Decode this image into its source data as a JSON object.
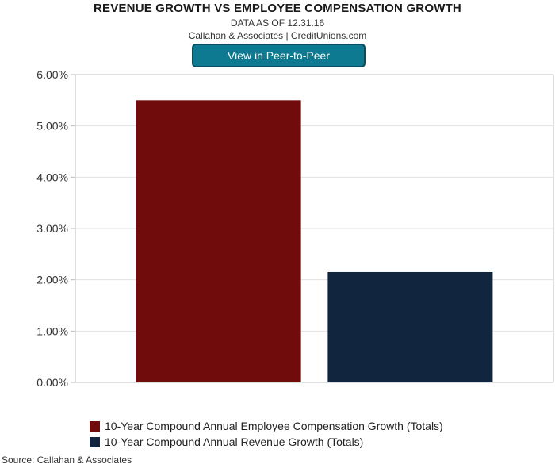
{
  "header": {
    "title": "REVENUE GROWTH VS EMPLOYEE COMPENSATION GROWTH",
    "date_line": "DATA AS OF 12.31.16",
    "attribution": "Callahan & Associates | CreditUnions.com"
  },
  "button": {
    "label": "View in Peer-to-Peer"
  },
  "footer": {
    "source": "Source: Callahan & Associates"
  },
  "chart_data": {
    "type": "bar",
    "title": "REVENUE GROWTH VS EMPLOYEE COMPENSATION GROWTH",
    "xlabel": "",
    "ylabel": "",
    "ylim": [
      0,
      6
    ],
    "yticks": [
      0,
      1,
      2,
      3,
      4,
      5,
      6
    ],
    "ytick_labels": [
      "0.00%",
      "1.00%",
      "2.00%",
      "3.00%",
      "4.00%",
      "5.00%",
      "6.00%"
    ],
    "grid": true,
    "legend_placement": "bottom",
    "categories": [
      ""
    ],
    "series": [
      {
        "name": "10-Year Compound Annual Employee Compensation Growth (Totals)",
        "values": [
          5.5
        ],
        "color": "#710c0c"
      },
      {
        "name": "10-Year Compound Annual Revenue Growth (Totals)",
        "values": [
          2.15
        ],
        "color": "#12253f"
      }
    ]
  }
}
